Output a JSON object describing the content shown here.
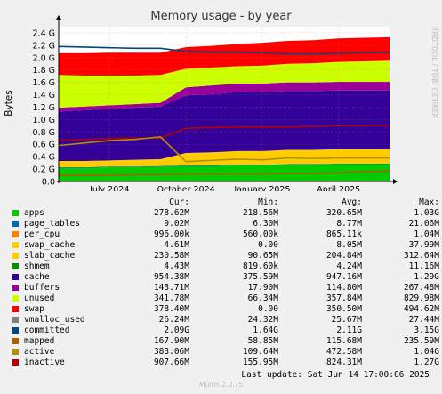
{
  "title": "Memory usage - by year",
  "watermark": "RRDTOOL / TOBI OETIKER",
  "footer": {
    "last_update": "Last update: Sat Jun 14 17:00:06 2025",
    "version": "Munin 2.0.75"
  },
  "legend_headers": {
    "cur": "Cur:",
    "min": "Min:",
    "avg": "Avg:",
    "max": "Max:"
  },
  "legend": [
    {
      "name": "apps",
      "color": "#00cc00",
      "cur": "278.62M",
      "min": "218.56M",
      "avg": "320.65M",
      "max": "1.03G"
    },
    {
      "name": "page_tables",
      "color": "#0066b3",
      "cur": "9.02M",
      "min": "6.30M",
      "avg": "8.77M",
      "max": "21.06M"
    },
    {
      "name": "per_cpu",
      "color": "#ff8000",
      "cur": "996.00k",
      "min": "560.00k",
      "avg": "865.11k",
      "max": "1.04M"
    },
    {
      "name": "swap_cache",
      "color": "#ffcc00",
      "cur": "4.61M",
      "min": "0.00",
      "avg": "8.05M",
      "max": "37.99M"
    },
    {
      "name": "slab_cache",
      "color": "#ffcc00",
      "cur": "230.58M",
      "min": "90.65M",
      "avg": "204.84M",
      "max": "312.64M"
    },
    {
      "name": "shmem",
      "color": "#008f00",
      "cur": "4.43M",
      "min": "819.60k",
      "avg": "4.24M",
      "max": "11.16M"
    },
    {
      "name": "cache",
      "color": "#330099",
      "cur": "954.38M",
      "min": "375.59M",
      "avg": "947.16M",
      "max": "1.29G"
    },
    {
      "name": "buffers",
      "color": "#990099",
      "cur": "143.71M",
      "min": "17.90M",
      "avg": "114.80M",
      "max": "267.48M"
    },
    {
      "name": "unused",
      "color": "#ccff00",
      "cur": "341.78M",
      "min": "66.34M",
      "avg": "357.84M",
      "max": "829.98M"
    },
    {
      "name": "swap",
      "color": "#ff0000",
      "cur": "378.40M",
      "min": "0.00",
      "avg": "350.50M",
      "max": "494.62M"
    },
    {
      "name": "vmalloc_used",
      "color": "#808080",
      "cur": "26.24M",
      "min": "24.32M",
      "avg": "25.67M",
      "max": "27.44M"
    },
    {
      "name": "committed",
      "color": "#00487d",
      "cur": "2.09G",
      "min": "1.64G",
      "avg": "2.11G",
      "max": "3.15G"
    },
    {
      "name": "mapped",
      "color": "#b35a00",
      "cur": "167.90M",
      "min": "58.85M",
      "avg": "115.68M",
      "max": "235.59M"
    },
    {
      "name": "active",
      "color": "#b38f00",
      "cur": "383.06M",
      "min": "109.64M",
      "avg": "472.58M",
      "max": "1.04G"
    },
    {
      "name": "inactive",
      "color": "#b30000",
      "cur": "907.66M",
      "min": "155.95M",
      "avg": "824.31M",
      "max": "1.27G"
    }
  ],
  "chart_data": {
    "type": "area",
    "title": "Memory usage - by year",
    "ylabel": "Bytes",
    "ylim": [
      0,
      2.5
    ],
    "yticks": [
      "0.0",
      "0.2 G",
      "0.4 G",
      "0.6 G",
      "0.8 G",
      "1.0 G",
      "1.2 G",
      "1.4 G",
      "1.6 G",
      "1.8 G",
      "2.0 G",
      "2.2 G",
      "2.4 G"
    ],
    "xticks": [
      "July 2024",
      "October 2024",
      "January 2025",
      "April 2025"
    ],
    "x": [
      "2024-05",
      "2024-06",
      "2024-07",
      "2024-08",
      "2024-09",
      "2024-10",
      "2024-11",
      "2024-12",
      "2025-01",
      "2025-02",
      "2025-03",
      "2025-04",
      "2025-05",
      "2025-06"
    ],
    "grid": true,
    "stacked_series": [
      {
        "name": "apps",
        "color": "#00cc00",
        "values": [
          0.22,
          0.22,
          0.23,
          0.23,
          0.24,
          0.25,
          0.25,
          0.26,
          0.26,
          0.27,
          0.27,
          0.28,
          0.28,
          0.28
        ]
      },
      {
        "name": "page_tables",
        "color": "#0066b3",
        "values": [
          0.01,
          0.01,
          0.01,
          0.01,
          0.01,
          0.01,
          0.01,
          0.01,
          0.01,
          0.01,
          0.01,
          0.01,
          0.01,
          0.01
        ]
      },
      {
        "name": "slab_cache",
        "color": "#ffcc00",
        "values": [
          0.1,
          0.1,
          0.1,
          0.11,
          0.11,
          0.2,
          0.21,
          0.22,
          0.22,
          0.23,
          0.23,
          0.23,
          0.23,
          0.23
        ]
      },
      {
        "name": "cache",
        "color": "#330099",
        "values": [
          0.8,
          0.82,
          0.83,
          0.84,
          0.85,
          0.93,
          0.94,
          0.95,
          0.95,
          0.95,
          0.95,
          0.95,
          0.95,
          0.95
        ]
      },
      {
        "name": "buffers",
        "color": "#990099",
        "values": [
          0.06,
          0.06,
          0.06,
          0.06,
          0.06,
          0.13,
          0.14,
          0.14,
          0.14,
          0.14,
          0.14,
          0.14,
          0.14,
          0.14
        ]
      },
      {
        "name": "unused",
        "color": "#ccff00",
        "values": [
          0.53,
          0.5,
          0.48,
          0.46,
          0.45,
          0.3,
          0.29,
          0.28,
          0.29,
          0.3,
          0.31,
          0.32,
          0.33,
          0.34
        ]
      },
      {
        "name": "swap",
        "color": "#ff0000",
        "values": [
          0.35,
          0.36,
          0.37,
          0.37,
          0.36,
          0.35,
          0.35,
          0.36,
          0.37,
          0.37,
          0.37,
          0.38,
          0.38,
          0.38
        ]
      }
    ],
    "line_series": [
      {
        "name": "committed",
        "color": "#00487d",
        "values": [
          2.18,
          2.17,
          2.16,
          2.15,
          2.15,
          2.1,
          2.09,
          2.09,
          2.08,
          2.06,
          2.06,
          2.07,
          2.08,
          2.09
        ]
      },
      {
        "name": "inactive",
        "color": "#b30000",
        "values": [
          0.66,
          0.68,
          0.69,
          0.7,
          0.7,
          0.86,
          0.87,
          0.88,
          0.88,
          0.88,
          0.89,
          0.9,
          0.9,
          0.91
        ]
      },
      {
        "name": "active",
        "color": "#b38f00",
        "values": [
          0.58,
          0.62,
          0.66,
          0.68,
          0.72,
          0.32,
          0.34,
          0.36,
          0.35,
          0.38,
          0.37,
          0.38,
          0.38,
          0.38
        ]
      },
      {
        "name": "mapped",
        "color": "#b35a00",
        "values": [
          0.1,
          0.1,
          0.1,
          0.11,
          0.11,
          0.12,
          0.12,
          0.12,
          0.12,
          0.13,
          0.13,
          0.14,
          0.16,
          0.17
        ]
      }
    ]
  }
}
